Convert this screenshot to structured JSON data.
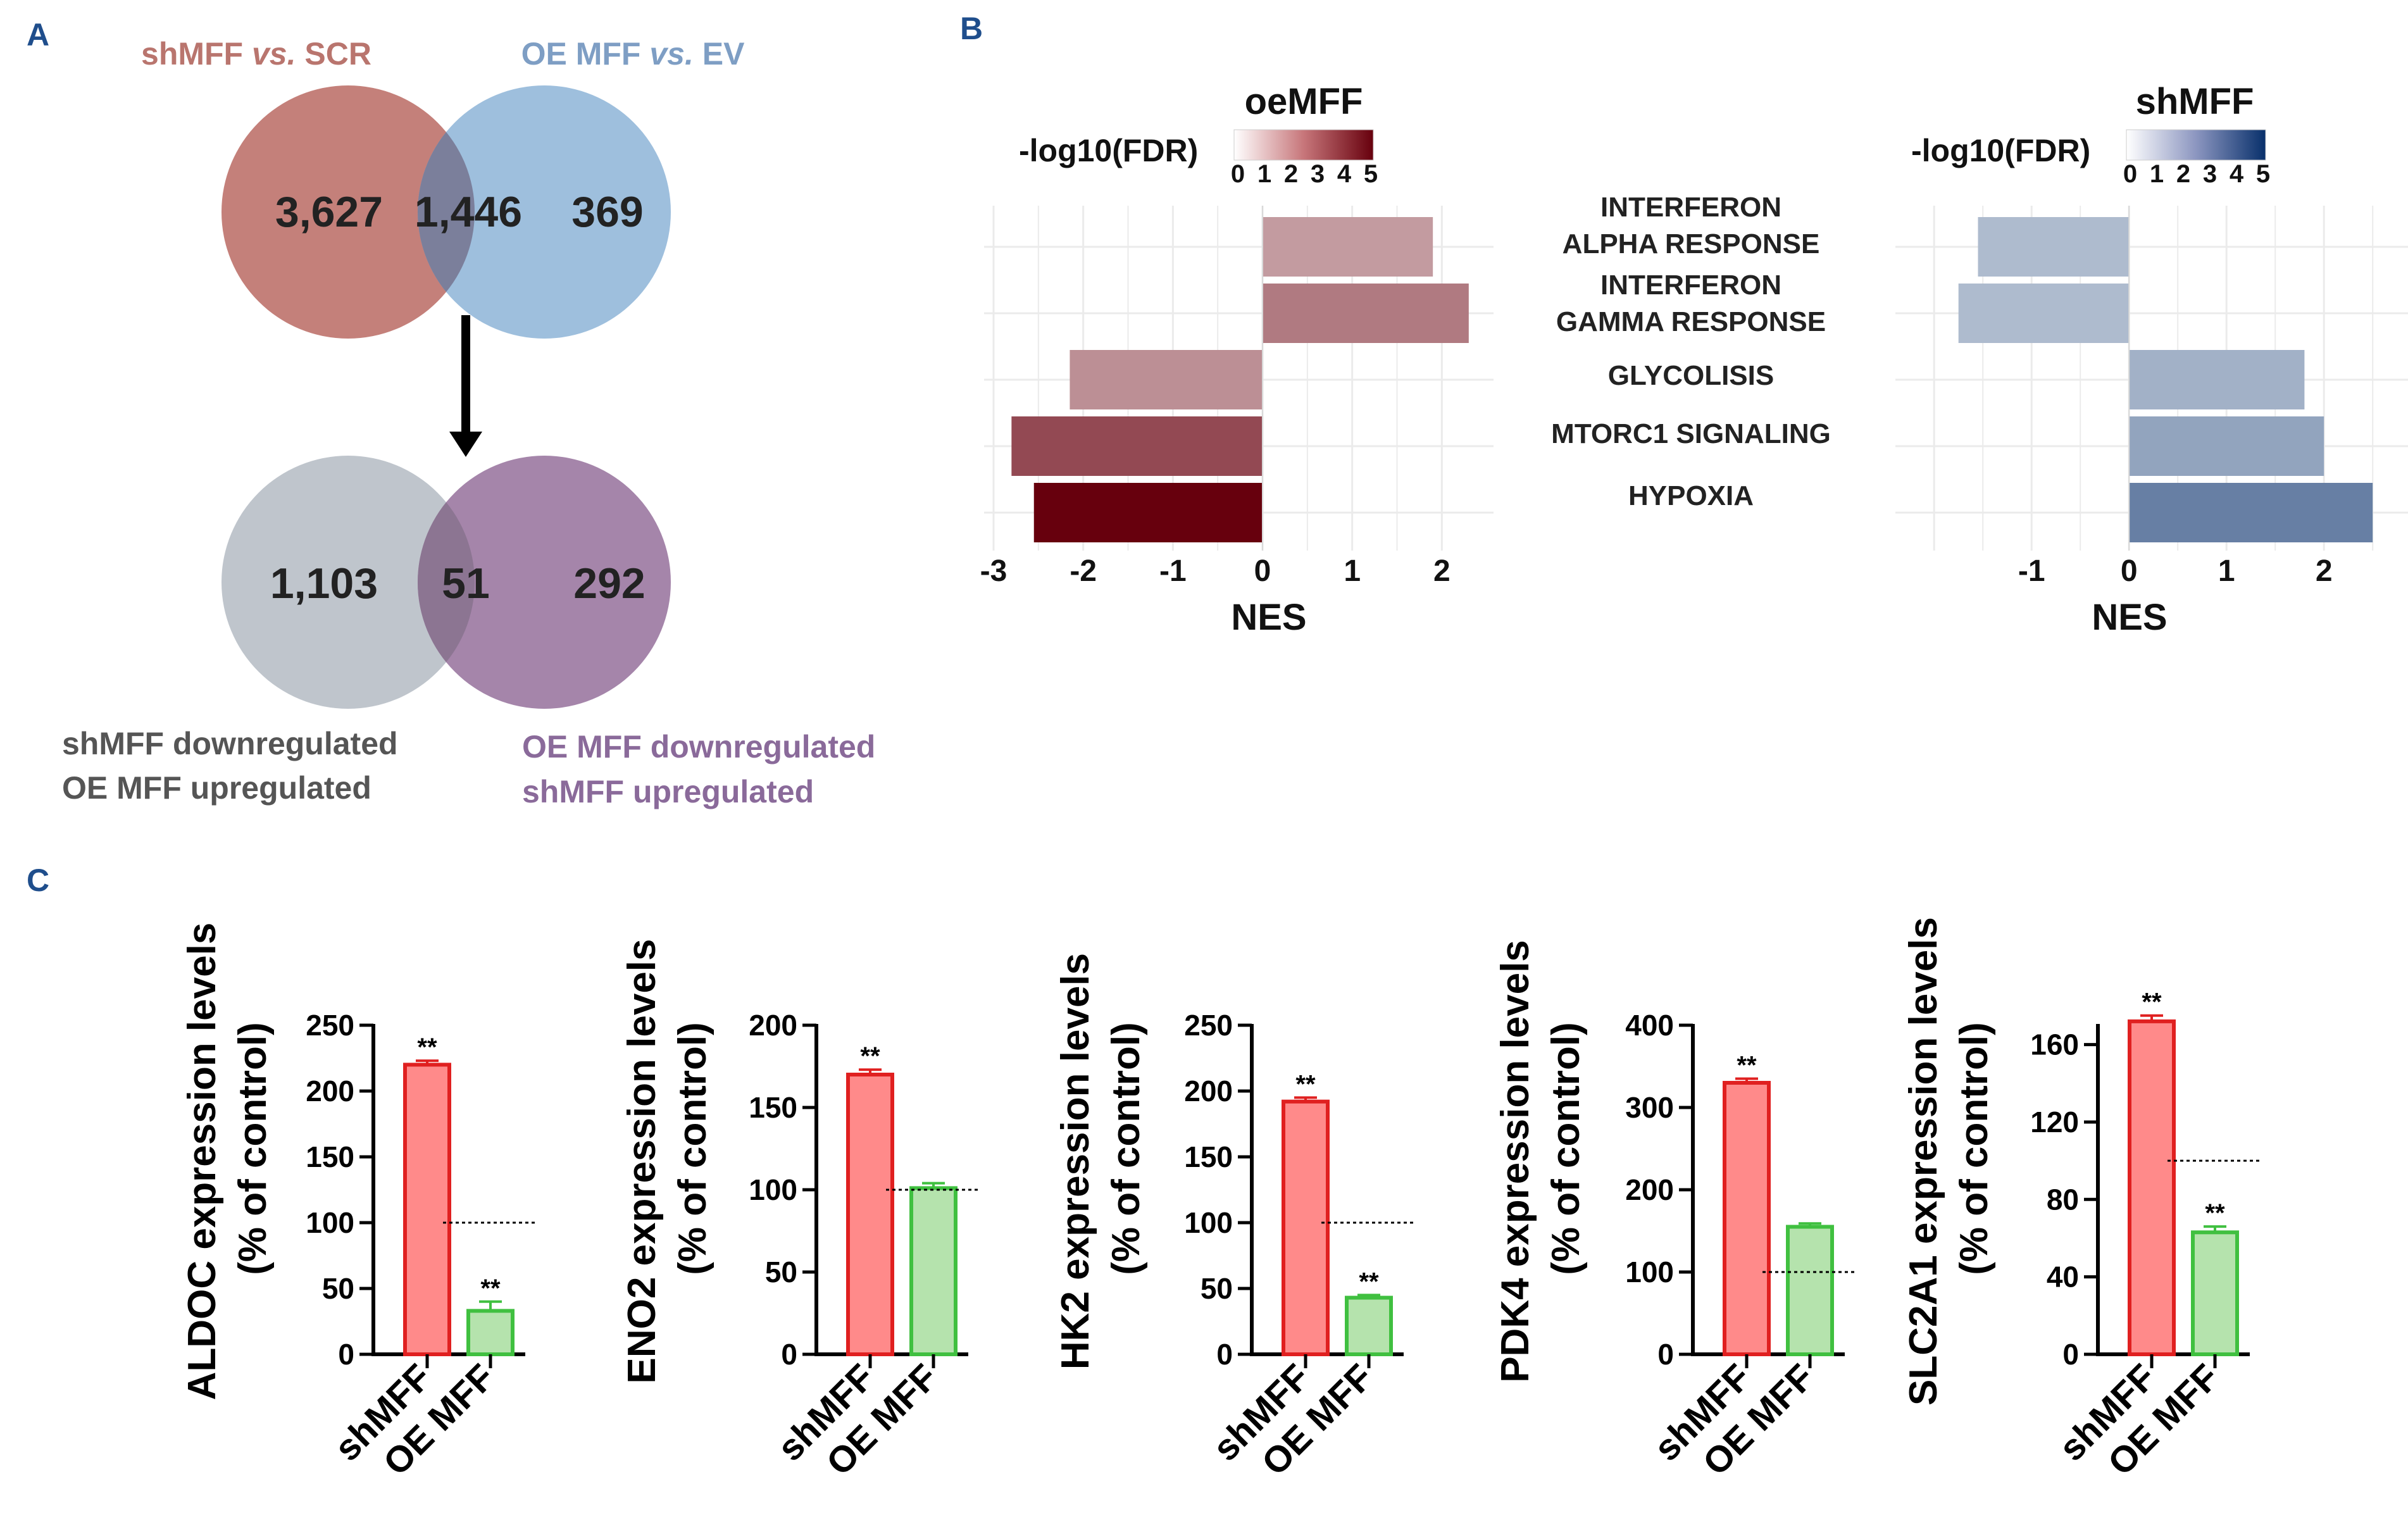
{
  "panels": {
    "a": "A",
    "b": "B",
    "c": "C"
  },
  "venn_top": {
    "left_label_pre": "shMFF ",
    "left_label_vs": "vs.",
    "left_label_post": " SCR",
    "right_label_pre": "OE MFF ",
    "right_label_vs": "vs.",
    "right_label_post": " EV",
    "left_only": "3,627",
    "overlap": "1,446",
    "right_only": "369",
    "colors": {
      "left": "#c4807a",
      "right": "#93b8d9",
      "left_text": "#b9756e",
      "right_text": "#7e9ec4"
    }
  },
  "venn_bottom": {
    "left_only": "1,103",
    "overlap": "51",
    "right_only": "292",
    "left_label_line1": "shMFF downregulated",
    "left_label_line2": "OE MFF upregulated",
    "right_label_line1": "OE MFF downregulated",
    "right_label_line2": "shMFF upregulated",
    "colors": {
      "left": "#bfc5cc",
      "right": "#a585aa",
      "left_text": "#555555",
      "right_text": "#8a6a9a"
    }
  },
  "gsea": {
    "legend_label": "-log10(FDR)",
    "scale_ticks": [
      "0",
      "1",
      "2",
      "3",
      "4",
      "5"
    ],
    "pathways": [
      {
        "line1": "INTERFERON",
        "line2": "ALPHA RESPONSE"
      },
      {
        "line1": "INTERFERON",
        "line2": "GAMMA RESPONSE"
      },
      {
        "line1": "GLYCOLISIS",
        "line2": ""
      },
      {
        "line1": "MTORC1 SIGNALING",
        "line2": ""
      },
      {
        "line1": "HYPOXIA",
        "line2": ""
      }
    ],
    "xlabel": "NES"
  },
  "chart_data": [
    {
      "type": "bar",
      "orientation": "horizontal",
      "title": "oeMFF",
      "xlabel": "NES",
      "legend": "-log10(FDR)",
      "categories": [
        "INTERFERON ALPHA RESPONSE",
        "INTERFERON GAMMA RESPONSE",
        "GLYCOLISIS",
        "MTORC1 SIGNALING",
        "HYPOXIA"
      ],
      "values": [
        1.9,
        2.3,
        -2.15,
        -2.8,
        -2.55
      ],
      "fdr": [
        1.2,
        2.0,
        1.5,
        3.2,
        5.0
      ],
      "xlim": [
        -3,
        2.4
      ],
      "xticks": [
        "-3",
        "-2",
        "-1",
        "0",
        "1",
        "2"
      ],
      "color_low": "#ffffff",
      "color_high": "#67000d"
    },
    {
      "type": "bar",
      "orientation": "horizontal",
      "title": "shMFF",
      "xlabel": "NES",
      "legend": "-log10(FDR)",
      "categories": [
        "INTERFERON ALPHA RESPONSE",
        "INTERFERON GAMMA RESPONSE",
        "GLYCOLISIS",
        "MTORC1 SIGNALING",
        "HYPOXIA"
      ],
      "values": [
        -1.55,
        -1.75,
        1.8,
        2.0,
        2.5
      ],
      "fdr": [
        0.8,
        0.8,
        1.1,
        1.5,
        2.6
      ],
      "xlim": [
        -2.3,
        2.7
      ],
      "xticks": [
        "-1",
        "0",
        "1",
        "2"
      ],
      "color_low": "#ffffff",
      "color_high": "#08306b"
    },
    {
      "type": "bar",
      "title": "",
      "ylabel": "ALDOC expression levels",
      "ylabel2": "(% of control)",
      "categories": [
        "shMFF",
        "OE MFF"
      ],
      "values": [
        220,
        33
      ],
      "errors": [
        3,
        7
      ],
      "stars": [
        "**",
        "**"
      ],
      "ylim": [
        0,
        250
      ],
      "yticks": [
        "0",
        "50",
        "100",
        "150",
        "200",
        "250"
      ],
      "control": 100
    },
    {
      "type": "bar",
      "title": "",
      "ylabel": "ENO2 expression levels",
      "ylabel2": "(% of control)",
      "categories": [
        "shMFF",
        "OE MFF"
      ],
      "values": [
        170,
        101
      ],
      "errors": [
        3,
        3
      ],
      "stars": [
        "**",
        ""
      ],
      "ylim": [
        0,
        200
      ],
      "yticks": [
        "0",
        "50",
        "100",
        "150",
        "200"
      ],
      "control": 100
    },
    {
      "type": "bar",
      "title": "",
      "ylabel": "HK2 expression levels",
      "ylabel2": "(% of control)",
      "categories": [
        "shMFF",
        "OE MFF"
      ],
      "values": [
        192,
        43
      ],
      "errors": [
        3,
        2
      ],
      "stars": [
        "**",
        "**"
      ],
      "ylim": [
        0,
        250
      ],
      "yticks": [
        "0",
        "50",
        "100",
        "150",
        "200",
        "250"
      ],
      "control": 100
    },
    {
      "type": "bar",
      "title": "",
      "ylabel": "PDK4 expression levels",
      "ylabel2": "(% of control)",
      "categories": [
        "shMFF",
        "OE MFF"
      ],
      "values": [
        330,
        155
      ],
      "errors": [
        5,
        4
      ],
      "stars": [
        "**",
        ""
      ],
      "ylim": [
        0,
        400
      ],
      "yticks": [
        "0",
        "100",
        "200",
        "300",
        "400"
      ],
      "control": 100
    },
    {
      "type": "bar",
      "title": "",
      "ylabel": "SLC2A1 expression levels",
      "ylabel2": "(% of control)",
      "categories": [
        "shMFF",
        "OE MFF"
      ],
      "values": [
        172,
        63
      ],
      "errors": [
        3,
        3
      ],
      "stars": [
        "**",
        "**"
      ],
      "ylim": [
        0,
        170
      ],
      "yticks": [
        "0",
        "40",
        "80",
        "120",
        "160"
      ],
      "control": 100
    }
  ]
}
